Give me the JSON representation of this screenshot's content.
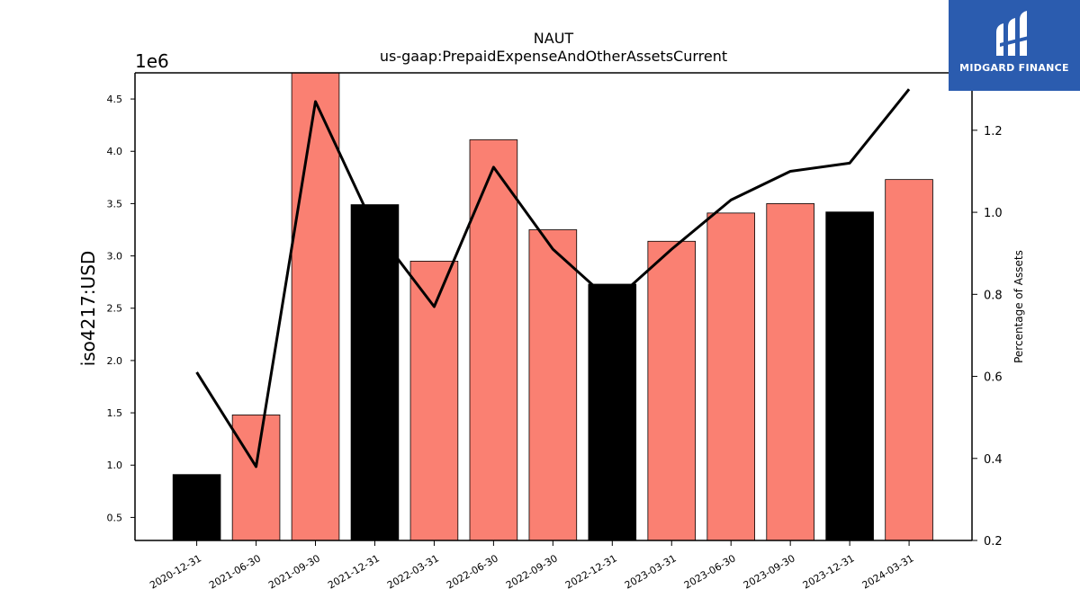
{
  "chart_data": {
    "type": "bar",
    "title": "NAUT",
    "subtitle": "us-gaap:PrepaidExpenseAndOtherAssetsCurrent",
    "ylabel": "iso4217:USD",
    "y_offset_label": "1e6",
    "y2label": "Percentage of Assets",
    "categories": [
      "2020-12-31",
      "2021-06-30",
      "2021-09-30",
      "2021-12-31",
      "2022-03-31",
      "2022-06-30",
      "2022-09-30",
      "2022-12-31",
      "2023-03-31",
      "2023-06-30",
      "2023-09-30",
      "2023-12-31",
      "2024-03-31"
    ],
    "values": [
      910000,
      1480000,
      4750000,
      3490000,
      2950000,
      4110000,
      3250000,
      2730000,
      3140000,
      3410000,
      3500000,
      3420000,
      3730000
    ],
    "bar_colors": [
      "#000000",
      "#fa8072",
      "#fa8072",
      "#000000",
      "#fa8072",
      "#fa8072",
      "#fa8072",
      "#000000",
      "#fa8072",
      "#fa8072",
      "#fa8072",
      "#000000",
      "#fa8072"
    ],
    "line_series": {
      "name": "Percentage of Assets",
      "values": [
        0.61,
        0.38,
        1.27,
        0.96,
        0.77,
        1.11,
        0.91,
        0.78,
        0.91,
        1.03,
        1.1,
        1.12,
        1.3
      ],
      "color": "#000000"
    },
    "ylim": [
      280000,
      4750000
    ],
    "y_ticks": [
      0.5,
      1.0,
      1.5,
      2.0,
      2.5,
      3.0,
      3.5,
      4.0,
      4.5
    ],
    "y_tick_labels": [
      "0.5",
      "1.0",
      "1.5",
      "2.0",
      "2.5",
      "3.0",
      "3.5",
      "4.0",
      "4.5"
    ],
    "y2lim": [
      0.2,
      1.34
    ],
    "y2_ticks": [
      0.2,
      0.4,
      0.6,
      0.8,
      1.0,
      1.2
    ],
    "y2_tick_labels": [
      "0.2",
      "0.4",
      "0.6",
      "0.8",
      "1.0",
      "1.2"
    ],
    "grid": false,
    "legend": "none"
  },
  "branding": {
    "logo_text": "MIDGARD FINANCE",
    "logo_color": "#2b5caf"
  }
}
